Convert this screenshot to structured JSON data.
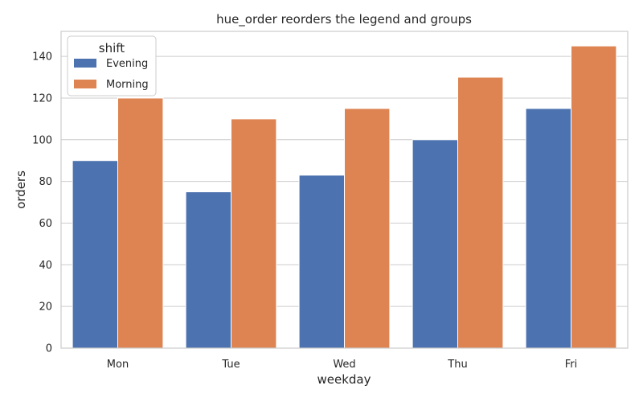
{
  "chart_data": {
    "type": "bar",
    "title": "hue_order reorders the legend and groups",
    "xlabel": "weekday",
    "ylabel": "orders",
    "categories": [
      "Mon",
      "Tue",
      "Wed",
      "Thu",
      "Fri"
    ],
    "series": [
      {
        "name": "Evening",
        "color": "#4c72b0",
        "values": [
          90,
          75,
          83,
          100,
          115
        ]
      },
      {
        "name": "Morning",
        "color": "#dd8452",
        "values": [
          120,
          110,
          115,
          130,
          145
        ]
      }
    ],
    "ylim": [
      0,
      152
    ],
    "yticks": [
      0,
      20,
      40,
      60,
      80,
      100,
      120,
      140
    ],
    "grid": true,
    "legend": {
      "title": "shift",
      "placement": "top-left"
    }
  }
}
